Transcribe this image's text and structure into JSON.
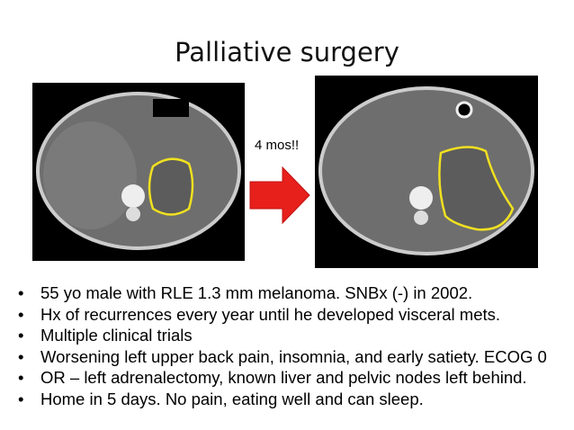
{
  "title": "Palliative surgery",
  "arrow_label": "4 mos!!",
  "bullets": [
    "55 yo male with RLE 1.3 mm melanoma. SNBx (-) in 2002.",
    "Hx of recurrences every year until he developed visceral mets.",
    "Multiple clinical trials",
    "Worsening left upper back pain, insomnia, and early satiety. ECOG 0",
    "OR – left adrenalectomy, known liver and pelvic nodes left behind.",
    "Home in 5 days. No pain, eating well and can sleep."
  ]
}
